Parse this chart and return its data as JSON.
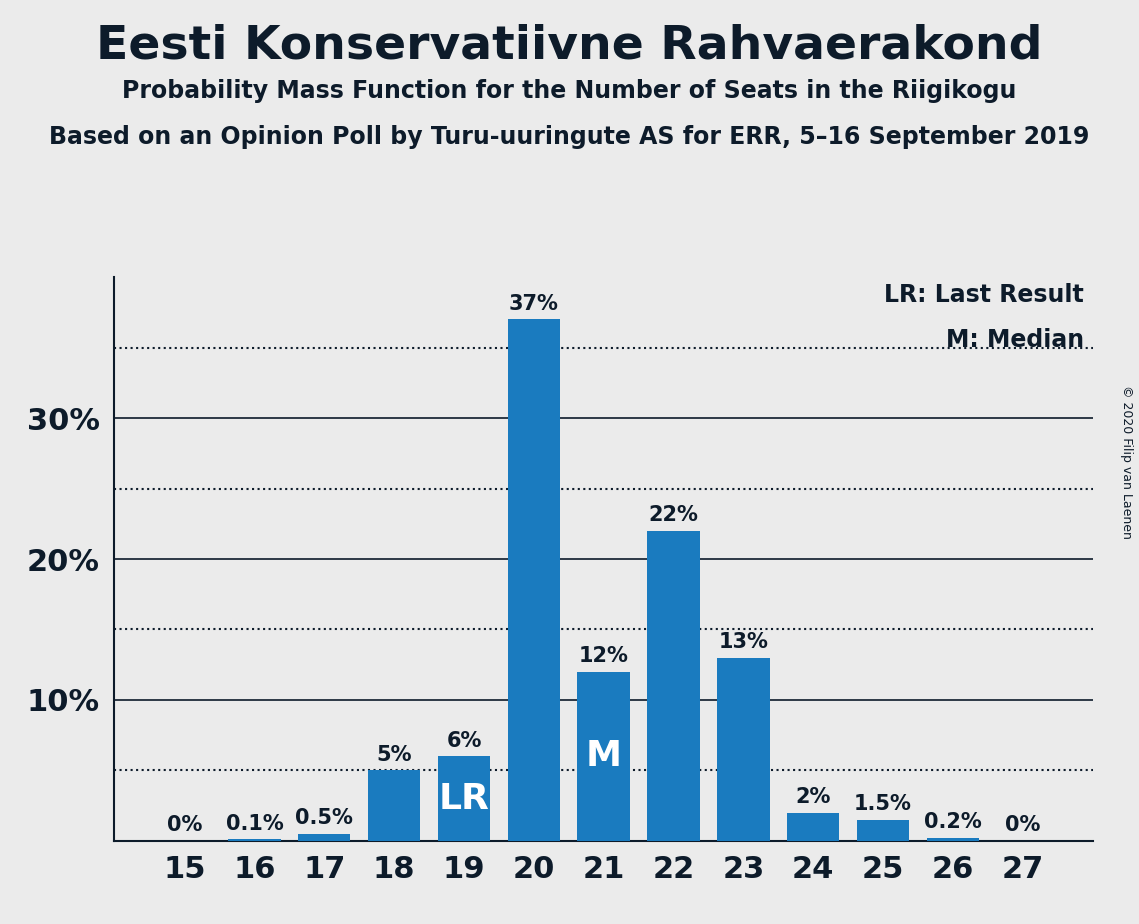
{
  "title": "Eesti Konservatiivne Rahvaerakond",
  "subtitle1": "Probability Mass Function for the Number of Seats in the Riigikogu",
  "subtitle2": "Based on an Opinion Poll by Turu-uuringute AS for ERR, 5–16 September 2019",
  "copyright": "© 2020 Filip van Laenen",
  "seats": [
    15,
    16,
    17,
    18,
    19,
    20,
    21,
    22,
    23,
    24,
    25,
    26,
    27
  ],
  "probabilities": [
    0.0,
    0.1,
    0.5,
    5.0,
    6.0,
    37.0,
    12.0,
    22.0,
    13.0,
    2.0,
    1.5,
    0.2,
    0.0
  ],
  "bar_labels": [
    "0%",
    "0.1%",
    "0.5%",
    "5%",
    "6%",
    "37%",
    "12%",
    "22%",
    "13%",
    "2%",
    "1.5%",
    "0.2%",
    "0%"
  ],
  "bar_color": "#1a7bbf",
  "background_color": "#ebebeb",
  "text_color": "#0d1b2a",
  "LR_seat": 19,
  "Median_seat": 21,
  "solid_lines": [
    10.0,
    20.0,
    30.0
  ],
  "dotted_lines": [
    5.0,
    15.0,
    25.0,
    35.0
  ],
  "ylim": [
    0,
    40
  ],
  "yticks": [
    10,
    20,
    30
  ],
  "ytick_labels": [
    "10%",
    "20%",
    "30%"
  ],
  "legend_text": [
    "LR: Last Result",
    "M: Median"
  ],
  "title_fontsize": 34,
  "subtitle_fontsize": 17,
  "tick_fontsize": 22,
  "label_fontsize": 15,
  "legend_fontsize": 17,
  "inside_label_fontsize": 26
}
